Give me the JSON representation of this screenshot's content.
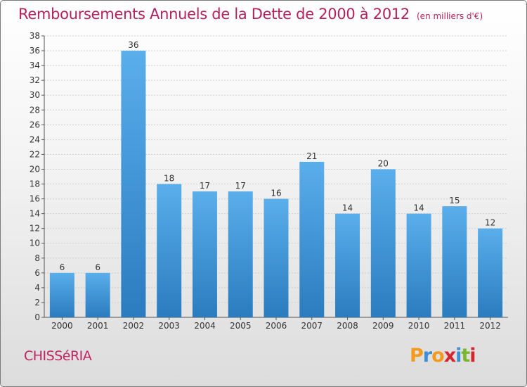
{
  "header": {
    "title": "Remboursements Annuels de la Dette de 2000 à 2012",
    "unit": "(en milliers d'€)"
  },
  "footer": {
    "commune": "CHISSéRIA",
    "brand_letters": [
      "P",
      "r",
      "o",
      "x",
      "i",
      "t",
      "i"
    ],
    "brand_colors": [
      "#f39a1e",
      "#3b8fd6",
      "#f39a1e",
      "#d8242f",
      "#3b8fd6",
      "#7ab62e",
      "#d8242f"
    ]
  },
  "colors": {
    "bar_light": "#5aaeea",
    "bar_dark": "#2a7cbf",
    "title": "#b4205e",
    "grid": "#d0d0d0"
  },
  "chart_data": {
    "type": "bar",
    "categories": [
      "2000",
      "2001",
      "2002",
      "2003",
      "2004",
      "2005",
      "2006",
      "2007",
      "2008",
      "2009",
      "2010",
      "2011",
      "2012"
    ],
    "values": [
      6,
      6,
      36,
      18,
      17,
      17,
      16,
      21,
      14,
      20,
      14,
      15,
      12
    ],
    "title": "Remboursements Annuels de la Dette de 2000 à 2012",
    "xlabel": "",
    "ylabel": "",
    "ylim": [
      0,
      38
    ],
    "yticks": [
      0,
      2,
      4,
      6,
      8,
      10,
      12,
      14,
      16,
      18,
      20,
      22,
      24,
      26,
      28,
      30,
      32,
      34,
      36,
      38
    ],
    "grid": true,
    "data_labels": true
  }
}
